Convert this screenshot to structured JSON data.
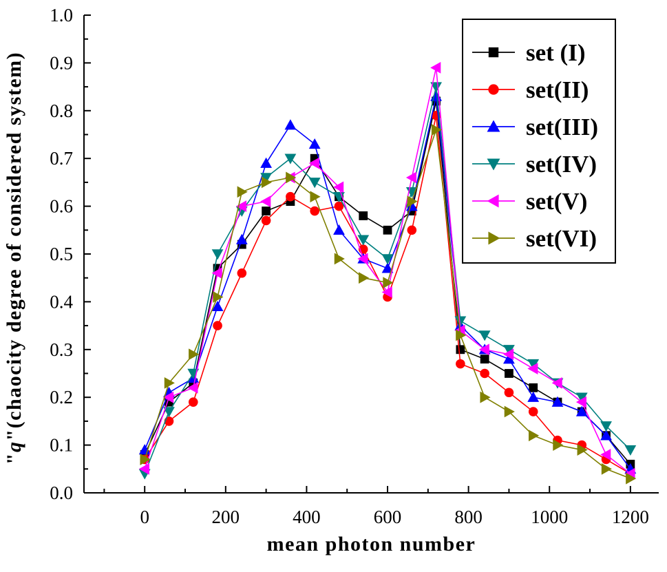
{
  "chart_data": {
    "type": "line",
    "title": "",
    "xlabel": "mean photon number",
    "ylabel_quote_open": "\"",
    "ylabel_q": "q",
    "ylabel_rest": "\"(chaocity degree of considered system)",
    "xlim": [
      -150,
      1270
    ],
    "ylim": [
      0.0,
      1.0
    ],
    "x_ticks": [
      0,
      200,
      400,
      600,
      800,
      1000,
      1200
    ],
    "x_tick_labels": [
      "0",
      "200",
      "400",
      "600",
      "800",
      "1000",
      "1200"
    ],
    "y_ticks": [
      0.0,
      0.1,
      0.2,
      0.3,
      0.4,
      0.5,
      0.6,
      0.7,
      0.8,
      0.9,
      1.0
    ],
    "y_tick_labels": [
      "0.0",
      "0.1",
      "0.2",
      "0.3",
      "0.4",
      "0.5",
      "0.6",
      "0.7",
      "0.8",
      "0.9",
      "1.0"
    ],
    "grid": false,
    "legend_position": "top-right",
    "x": [
      0,
      60,
      120,
      180,
      240,
      300,
      360,
      420,
      480,
      540,
      600,
      660,
      720,
      780,
      840,
      900,
      960,
      1020,
      1080,
      1140,
      1200
    ],
    "series": [
      {
        "name": "set (I)",
        "color": "#000000",
        "marker": "square",
        "values": [
          0.08,
          0.19,
          0.23,
          0.47,
          0.52,
          0.59,
          0.61,
          0.7,
          0.62,
          0.58,
          0.55,
          0.59,
          0.82,
          0.3,
          0.28,
          0.25,
          0.22,
          0.19,
          0.17,
          0.12,
          0.06
        ]
      },
      {
        "name": "set(II)",
        "color": "#ff0000",
        "marker": "circle",
        "values": [
          0.07,
          0.15,
          0.19,
          0.35,
          0.46,
          0.57,
          0.62,
          0.59,
          0.6,
          0.51,
          0.41,
          0.55,
          0.79,
          0.27,
          0.25,
          0.21,
          0.17,
          0.11,
          0.1,
          0.07,
          0.04
        ]
      },
      {
        "name": "set(III)",
        "color": "#0000ff",
        "marker": "triangle-up",
        "values": [
          0.09,
          0.21,
          0.24,
          0.39,
          0.53,
          0.69,
          0.77,
          0.73,
          0.55,
          0.49,
          0.47,
          0.6,
          0.83,
          0.35,
          0.3,
          0.28,
          0.2,
          0.19,
          0.17,
          0.12,
          0.05
        ]
      },
      {
        "name": "set(IV)",
        "color": "#008080",
        "marker": "triangle-down",
        "values": [
          0.04,
          0.17,
          0.25,
          0.5,
          0.59,
          0.66,
          0.7,
          0.65,
          0.62,
          0.53,
          0.49,
          0.63,
          0.85,
          0.36,
          0.33,
          0.3,
          0.27,
          0.23,
          0.2,
          0.14,
          0.09
        ]
      },
      {
        "name": "set(V)",
        "color": "#ff00ff",
        "marker": "triangle-left",
        "values": [
          0.05,
          0.2,
          0.22,
          0.46,
          0.6,
          0.61,
          0.66,
          0.69,
          0.64,
          0.49,
          0.42,
          0.66,
          0.89,
          0.34,
          0.3,
          0.29,
          0.26,
          0.23,
          0.19,
          0.08,
          0.04
        ]
      },
      {
        "name": "set(VI)",
        "color": "#808000",
        "marker": "triangle-right",
        "values": [
          0.07,
          0.23,
          0.29,
          0.41,
          0.63,
          0.65,
          0.66,
          0.62,
          0.49,
          0.45,
          0.44,
          0.61,
          0.76,
          0.33,
          0.2,
          0.17,
          0.12,
          0.1,
          0.09,
          0.05,
          0.03
        ]
      }
    ]
  }
}
